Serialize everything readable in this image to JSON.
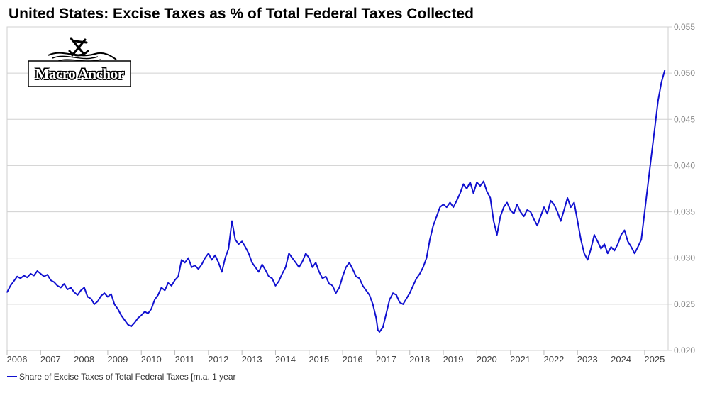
{
  "title": "United States: Excise Taxes as % of Total Federal Taxes Collected",
  "logo": {
    "text": "Macro Anchor"
  },
  "colors": {
    "series": "#1010d0",
    "grid": "#d0d0d0",
    "axis_text": "#888888"
  },
  "chart_data": {
    "type": "line",
    "title": "United States: Excise Taxes as % of Total Federal Taxes Collected",
    "xlabel": "",
    "ylabel": "",
    "xlim": [
      2006.0,
      2025.7
    ],
    "ylim": [
      0.02,
      0.055
    ],
    "y_ticks": [
      "0.020",
      "0.025",
      "0.030",
      "0.035",
      "0.040",
      "0.045",
      "0.050",
      "0.055"
    ],
    "x_ticks": [
      "2006",
      "2007",
      "2008",
      "2009",
      "2010",
      "2011",
      "2012",
      "2013",
      "2014",
      "2015",
      "2016",
      "2017",
      "2018",
      "2019",
      "2020",
      "2021",
      "2022",
      "2023",
      "2024",
      "2025"
    ],
    "grid": true,
    "legend_position": "bottom-left",
    "series": [
      {
        "name": "Share of Excise Taxes of Total Federal Taxes [m.a. 1 year",
        "color": "#1010d0",
        "points": [
          [
            2006.0,
            0.0263
          ],
          [
            2006.1,
            0.027
          ],
          [
            2006.2,
            0.0275
          ],
          [
            2006.3,
            0.028
          ],
          [
            2006.4,
            0.0278
          ],
          [
            2006.5,
            0.0281
          ],
          [
            2006.6,
            0.0279
          ],
          [
            2006.7,
            0.0283
          ],
          [
            2006.8,
            0.0281
          ],
          [
            2006.9,
            0.0286
          ],
          [
            2007.0,
            0.0283
          ],
          [
            2007.1,
            0.028
          ],
          [
            2007.2,
            0.0282
          ],
          [
            2007.3,
            0.0276
          ],
          [
            2007.4,
            0.0274
          ],
          [
            2007.5,
            0.027
          ],
          [
            2007.6,
            0.0268
          ],
          [
            2007.7,
            0.0272
          ],
          [
            2007.8,
            0.0266
          ],
          [
            2007.9,
            0.0268
          ],
          [
            2008.0,
            0.0263
          ],
          [
            2008.1,
            0.026
          ],
          [
            2008.2,
            0.0265
          ],
          [
            2008.3,
            0.0268
          ],
          [
            2008.4,
            0.0258
          ],
          [
            2008.5,
            0.0256
          ],
          [
            2008.6,
            0.025
          ],
          [
            2008.7,
            0.0253
          ],
          [
            2008.8,
            0.0259
          ],
          [
            2008.9,
            0.0262
          ],
          [
            2009.0,
            0.0258
          ],
          [
            2009.1,
            0.0261
          ],
          [
            2009.2,
            0.025
          ],
          [
            2009.3,
            0.0245
          ],
          [
            2009.4,
            0.0238
          ],
          [
            2009.5,
            0.0233
          ],
          [
            2009.6,
            0.0228
          ],
          [
            2009.7,
            0.0226
          ],
          [
            2009.8,
            0.023
          ],
          [
            2009.9,
            0.0235
          ],
          [
            2010.0,
            0.0238
          ],
          [
            2010.1,
            0.0242
          ],
          [
            2010.2,
            0.024
          ],
          [
            2010.3,
            0.0245
          ],
          [
            2010.4,
            0.0255
          ],
          [
            2010.5,
            0.026
          ],
          [
            2010.6,
            0.0268
          ],
          [
            2010.7,
            0.0265
          ],
          [
            2010.8,
            0.0273
          ],
          [
            2010.9,
            0.027
          ],
          [
            2011.0,
            0.0276
          ],
          [
            2011.1,
            0.028
          ],
          [
            2011.2,
            0.0298
          ],
          [
            2011.3,
            0.0295
          ],
          [
            2011.4,
            0.03
          ],
          [
            2011.5,
            0.029
          ],
          [
            2011.6,
            0.0292
          ],
          [
            2011.7,
            0.0288
          ],
          [
            2011.8,
            0.0293
          ],
          [
            2011.9,
            0.03
          ],
          [
            2012.0,
            0.0305
          ],
          [
            2012.1,
            0.0298
          ],
          [
            2012.2,
            0.0303
          ],
          [
            2012.3,
            0.0295
          ],
          [
            2012.4,
            0.0285
          ],
          [
            2012.5,
            0.03
          ],
          [
            2012.6,
            0.031
          ],
          [
            2012.7,
            0.034
          ],
          [
            2012.8,
            0.032
          ],
          [
            2012.9,
            0.0315
          ],
          [
            2013.0,
            0.0318
          ],
          [
            2013.1,
            0.0312
          ],
          [
            2013.2,
            0.0305
          ],
          [
            2013.3,
            0.0295
          ],
          [
            2013.4,
            0.029
          ],
          [
            2013.5,
            0.0285
          ],
          [
            2013.6,
            0.0293
          ],
          [
            2013.7,
            0.0287
          ],
          [
            2013.8,
            0.028
          ],
          [
            2013.9,
            0.0278
          ],
          [
            2014.0,
            0.027
          ],
          [
            2014.1,
            0.0275
          ],
          [
            2014.2,
            0.0283
          ],
          [
            2014.3,
            0.029
          ],
          [
            2014.4,
            0.0305
          ],
          [
            2014.5,
            0.03
          ],
          [
            2014.6,
            0.0295
          ],
          [
            2014.7,
            0.029
          ],
          [
            2014.8,
            0.0296
          ],
          [
            2014.9,
            0.0305
          ],
          [
            2015.0,
            0.03
          ],
          [
            2015.1,
            0.029
          ],
          [
            2015.2,
            0.0295
          ],
          [
            2015.3,
            0.0285
          ],
          [
            2015.4,
            0.0278
          ],
          [
            2015.5,
            0.028
          ],
          [
            2015.6,
            0.0272
          ],
          [
            2015.7,
            0.027
          ],
          [
            2015.8,
            0.0262
          ],
          [
            2015.9,
            0.0268
          ],
          [
            2016.0,
            0.028
          ],
          [
            2016.1,
            0.029
          ],
          [
            2016.2,
            0.0295
          ],
          [
            2016.3,
            0.0288
          ],
          [
            2016.4,
            0.028
          ],
          [
            2016.5,
            0.0278
          ],
          [
            2016.6,
            0.027
          ],
          [
            2016.7,
            0.0265
          ],
          [
            2016.8,
            0.026
          ],
          [
            2016.9,
            0.025
          ],
          [
            2017.0,
            0.0235
          ],
          [
            2017.05,
            0.0222
          ],
          [
            2017.1,
            0.022
          ],
          [
            2017.2,
            0.0225
          ],
          [
            2017.3,
            0.024
          ],
          [
            2017.4,
            0.0255
          ],
          [
            2017.5,
            0.0262
          ],
          [
            2017.6,
            0.026
          ],
          [
            2017.7,
            0.0252
          ],
          [
            2017.8,
            0.025
          ],
          [
            2017.9,
            0.0256
          ],
          [
            2018.0,
            0.0262
          ],
          [
            2018.1,
            0.027
          ],
          [
            2018.2,
            0.0278
          ],
          [
            2018.3,
            0.0283
          ],
          [
            2018.4,
            0.029
          ],
          [
            2018.5,
            0.03
          ],
          [
            2018.6,
            0.032
          ],
          [
            2018.7,
            0.0335
          ],
          [
            2018.8,
            0.0345
          ],
          [
            2018.9,
            0.0355
          ],
          [
            2019.0,
            0.0358
          ],
          [
            2019.1,
            0.0355
          ],
          [
            2019.2,
            0.036
          ],
          [
            2019.3,
            0.0355
          ],
          [
            2019.4,
            0.0362
          ],
          [
            2019.5,
            0.037
          ],
          [
            2019.6,
            0.038
          ],
          [
            2019.7,
            0.0375
          ],
          [
            2019.8,
            0.0382
          ],
          [
            2019.9,
            0.037
          ],
          [
            2020.0,
            0.0382
          ],
          [
            2020.1,
            0.0378
          ],
          [
            2020.2,
            0.0383
          ],
          [
            2020.3,
            0.0372
          ],
          [
            2020.4,
            0.0365
          ],
          [
            2020.5,
            0.034
          ],
          [
            2020.6,
            0.0325
          ],
          [
            2020.7,
            0.0345
          ],
          [
            2020.8,
            0.0355
          ],
          [
            2020.9,
            0.036
          ],
          [
            2021.0,
            0.0352
          ],
          [
            2021.1,
            0.0348
          ],
          [
            2021.2,
            0.0358
          ],
          [
            2021.3,
            0.035
          ],
          [
            2021.4,
            0.0345
          ],
          [
            2021.5,
            0.0352
          ],
          [
            2021.6,
            0.035
          ],
          [
            2021.7,
            0.0342
          ],
          [
            2021.8,
            0.0335
          ],
          [
            2021.9,
            0.0345
          ],
          [
            2022.0,
            0.0355
          ],
          [
            2022.1,
            0.0348
          ],
          [
            2022.2,
            0.0362
          ],
          [
            2022.3,
            0.0358
          ],
          [
            2022.4,
            0.035
          ],
          [
            2022.5,
            0.034
          ],
          [
            2022.6,
            0.0352
          ],
          [
            2022.7,
            0.0365
          ],
          [
            2022.8,
            0.0355
          ],
          [
            2022.9,
            0.036
          ],
          [
            2023.0,
            0.034
          ],
          [
            2023.1,
            0.032
          ],
          [
            2023.2,
            0.0305
          ],
          [
            2023.3,
            0.0298
          ],
          [
            2023.4,
            0.031
          ],
          [
            2023.5,
            0.0325
          ],
          [
            2023.6,
            0.0318
          ],
          [
            2023.7,
            0.031
          ],
          [
            2023.8,
            0.0315
          ],
          [
            2023.9,
            0.0305
          ],
          [
            2024.0,
            0.0312
          ],
          [
            2024.1,
            0.0308
          ],
          [
            2024.2,
            0.0315
          ],
          [
            2024.3,
            0.0325
          ],
          [
            2024.4,
            0.033
          ],
          [
            2024.5,
            0.0318
          ],
          [
            2024.6,
            0.0312
          ],
          [
            2024.7,
            0.0305
          ],
          [
            2024.8,
            0.0312
          ],
          [
            2024.9,
            0.032
          ],
          [
            2025.0,
            0.035
          ],
          [
            2025.1,
            0.038
          ],
          [
            2025.2,
            0.041
          ],
          [
            2025.3,
            0.044
          ],
          [
            2025.4,
            0.047
          ],
          [
            2025.5,
            0.049
          ],
          [
            2025.6,
            0.0503
          ]
        ]
      }
    ]
  }
}
